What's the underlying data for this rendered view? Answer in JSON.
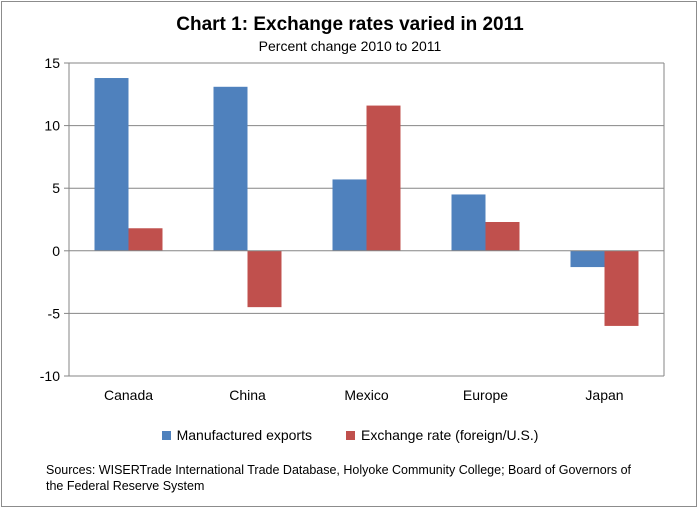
{
  "title": "Chart 1: Exchange rates varied in 2011",
  "subtitle": "Percent change 2010 to 2011",
  "sources": "Sources:  WISERTrade International Trade Database, Holyoke Community College; Board of Governors of the Federal Reserve System",
  "colors": {
    "manufactured_exports": "#4f81bd",
    "exchange_rate": "#c0504d",
    "gridline": "#868686"
  },
  "chart_data": {
    "type": "bar",
    "categories": [
      "Canada",
      "China",
      "Mexico",
      "Europe",
      "Japan"
    ],
    "series": [
      {
        "name": "Manufactured exports",
        "values": [
          13.8,
          13.1,
          5.7,
          4.5,
          -1.3
        ]
      },
      {
        "name": "Exchange rate (foreign/U.S.)",
        "values": [
          1.8,
          -4.5,
          11.6,
          2.3,
          -6.0
        ]
      }
    ],
    "ylim": [
      -10,
      15
    ],
    "yticks": [
      15,
      10,
      5,
      0,
      -5,
      -10
    ],
    "ytick_labels": [
      "15",
      "10",
      "5",
      "0",
      "-5",
      "-10"
    ],
    "grid": true,
    "legend_position": "bottom"
  }
}
